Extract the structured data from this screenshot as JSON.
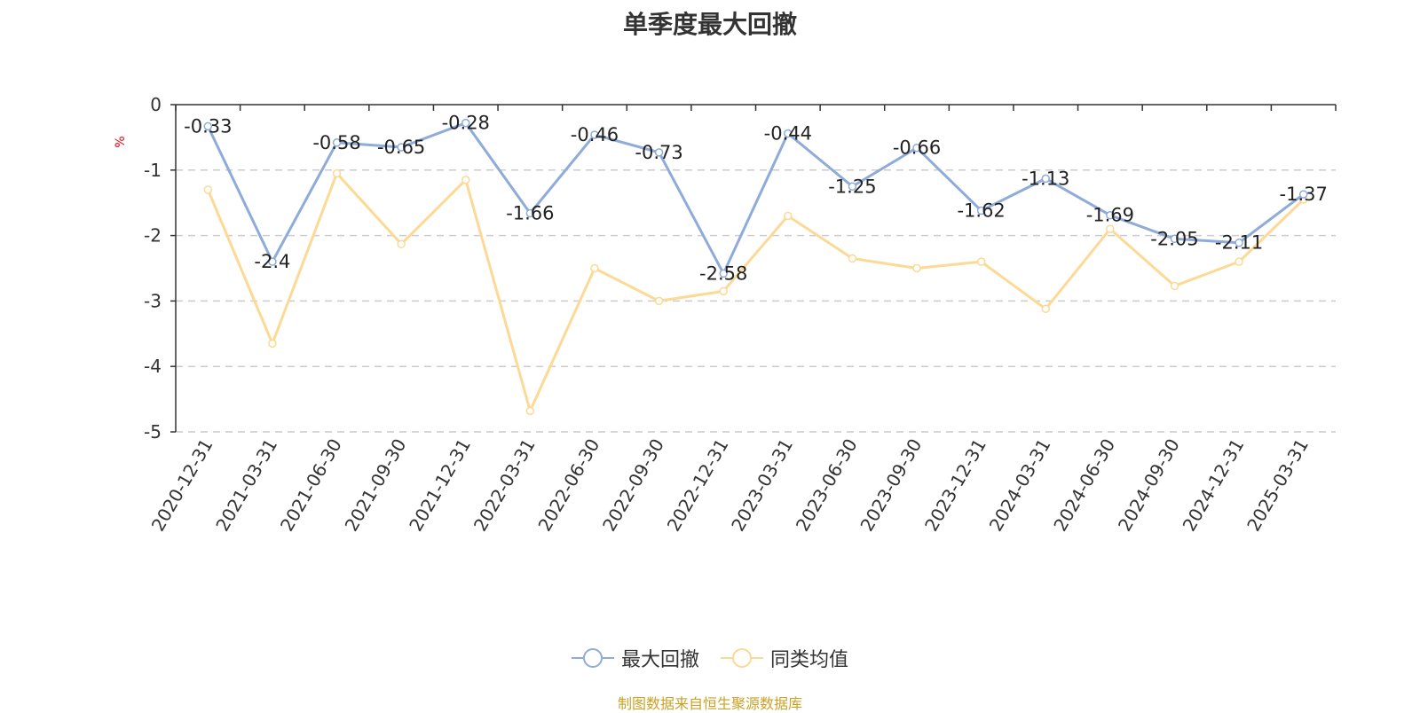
{
  "title": "单季度最大回撤",
  "source_note": "制图数据来自恒生聚源数据库",
  "chart_data": {
    "type": "line",
    "title": "单季度最大回撤",
    "ylabel": "%",
    "xlabel": "",
    "ylim": [
      -5,
      0
    ],
    "yticks": [
      0,
      -1,
      -2,
      -3,
      -4,
      -5
    ],
    "grid": true,
    "legend_position": "bottom-center",
    "categories": [
      "2020-12-31",
      "2021-03-31",
      "2021-06-30",
      "2021-09-30",
      "2021-12-31",
      "2022-03-31",
      "2022-06-30",
      "2022-09-30",
      "2022-12-31",
      "2023-03-31",
      "2023-06-30",
      "2023-09-30",
      "2023-12-31",
      "2024-03-31",
      "2024-06-30",
      "2024-09-30",
      "2024-12-31",
      "2025-03-31"
    ],
    "series": [
      {
        "name": "最大回撤",
        "color": "#8eabd9",
        "show_labels": true,
        "values": [
          -0.33,
          -2.4,
          -0.58,
          -0.65,
          -0.28,
          -1.66,
          -0.46,
          -0.73,
          -2.58,
          -0.44,
          -1.25,
          -0.66,
          -1.62,
          -1.13,
          -1.69,
          -2.05,
          -2.11,
          -1.37
        ]
      },
      {
        "name": "同类均值",
        "color": "#fcd995",
        "show_labels": false,
        "values": [
          -1.3,
          -3.65,
          -1.05,
          -2.13,
          -1.15,
          -4.68,
          -2.5,
          -3.0,
          -2.85,
          -1.7,
          -2.35,
          -2.5,
          -2.4,
          -3.12,
          -1.9,
          -2.77,
          -2.4,
          -1.45
        ]
      }
    ]
  }
}
